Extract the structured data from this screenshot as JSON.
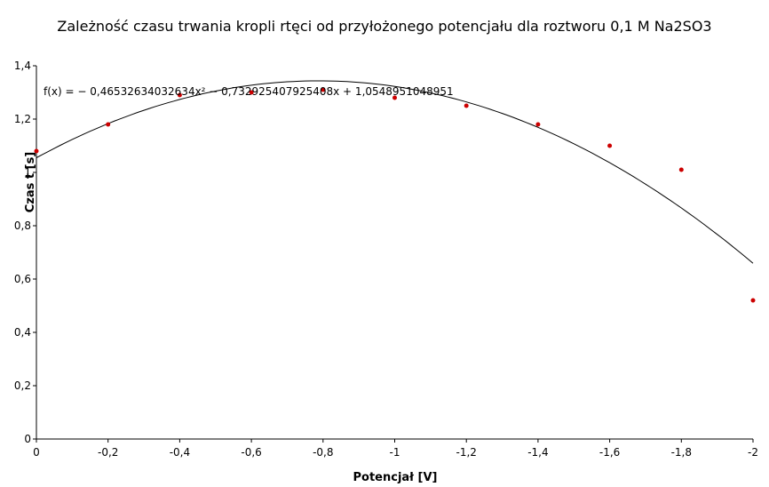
{
  "chart_data": {
    "type": "scatter",
    "title": "Zależność czasu trwania kropli rtęci od przyłożonego potencjału dla roztworu 0,1 M Na2SO3",
    "xlabel": "Potencjał [V]",
    "ylabel": "Czas t [s]",
    "xlim": [
      0,
      -2
    ],
    "ylim": [
      0,
      1.4
    ],
    "x_ticks": [
      "0",
      "-0,2",
      "-0,4",
      "-0,6",
      "-0,8",
      "-1",
      "-1,2",
      "-1,4",
      "-1,6",
      "-1,8",
      "-2"
    ],
    "y_ticks": [
      "0",
      "0,2",
      "0,4",
      "0,6",
      "0,8",
      "1",
      "1,2",
      "1,4"
    ],
    "points": {
      "x": [
        0,
        -0.2,
        -0.4,
        -0.6,
        -0.8,
        -1.0,
        -1.2,
        -1.4,
        -1.6,
        -1.8,
        -2.0
      ],
      "y": [
        1.08,
        1.18,
        1.29,
        1.3,
        1.31,
        1.28,
        1.25,
        1.18,
        1.1,
        1.01,
        0.52
      ]
    },
    "trendline": {
      "type": "polynomial",
      "coefficients": [
        -0.46532634032634,
        -0.732925407925408,
        1.0548951048951
      ],
      "equation": "f(x) = − 0,46532634032634x² − 0,732925407925408x + 1,0548951048951"
    },
    "grid": false,
    "colors": {
      "points": "#cc0000",
      "line": "#000000"
    }
  }
}
